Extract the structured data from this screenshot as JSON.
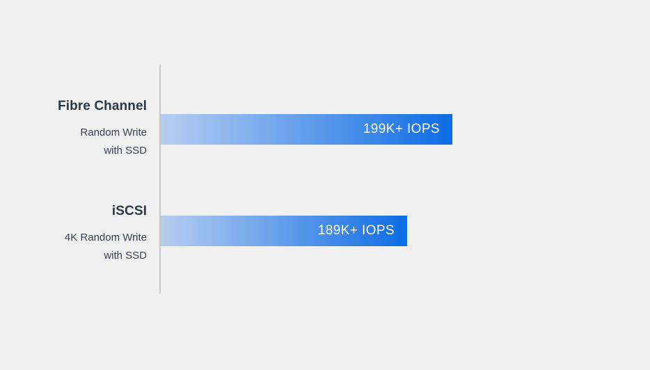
{
  "chart_data": {
    "type": "bar",
    "orientation": "horizontal",
    "title": "",
    "categories": [
      "Fibre Channel",
      "iSCSI"
    ],
    "category_subtitles": [
      [
        "Random Write",
        "with SSD"
      ],
      [
        "4K Random Write",
        "with SSD"
      ]
    ],
    "series": [
      {
        "name": "IOPS",
        "values": [
          199000,
          189000
        ]
      }
    ],
    "data_labels": [
      "199K+ IOPS",
      "189K+ IOPS"
    ],
    "xlabel": "",
    "ylabel": "",
    "grid": false,
    "legend": false,
    "axis": {
      "shown": "y-axis-vertical-line-only"
    }
  },
  "rows": [
    {
      "title": "Fibre Channel",
      "subtitle_line1": "Random Write",
      "subtitle_line2": "with SSD",
      "value_label": "199K+ IOPS",
      "bar_style": "width:419px"
    },
    {
      "title": "iSCSI",
      "subtitle_line1": "4K Random Write",
      "subtitle_line2": "with SSD",
      "value_label": "189K+ IOPS",
      "bar_style": "width:354px"
    }
  ],
  "colors": {
    "background": "#f1f1f2",
    "axis_line": "#c7c7c9",
    "bar_gradient_start": "#b7cef1",
    "bar_gradient_end": "#0d6ce4",
    "title_text": "#2d3847",
    "subtitle_text": "#3a4250",
    "bar_value_text": "#ffffff"
  }
}
